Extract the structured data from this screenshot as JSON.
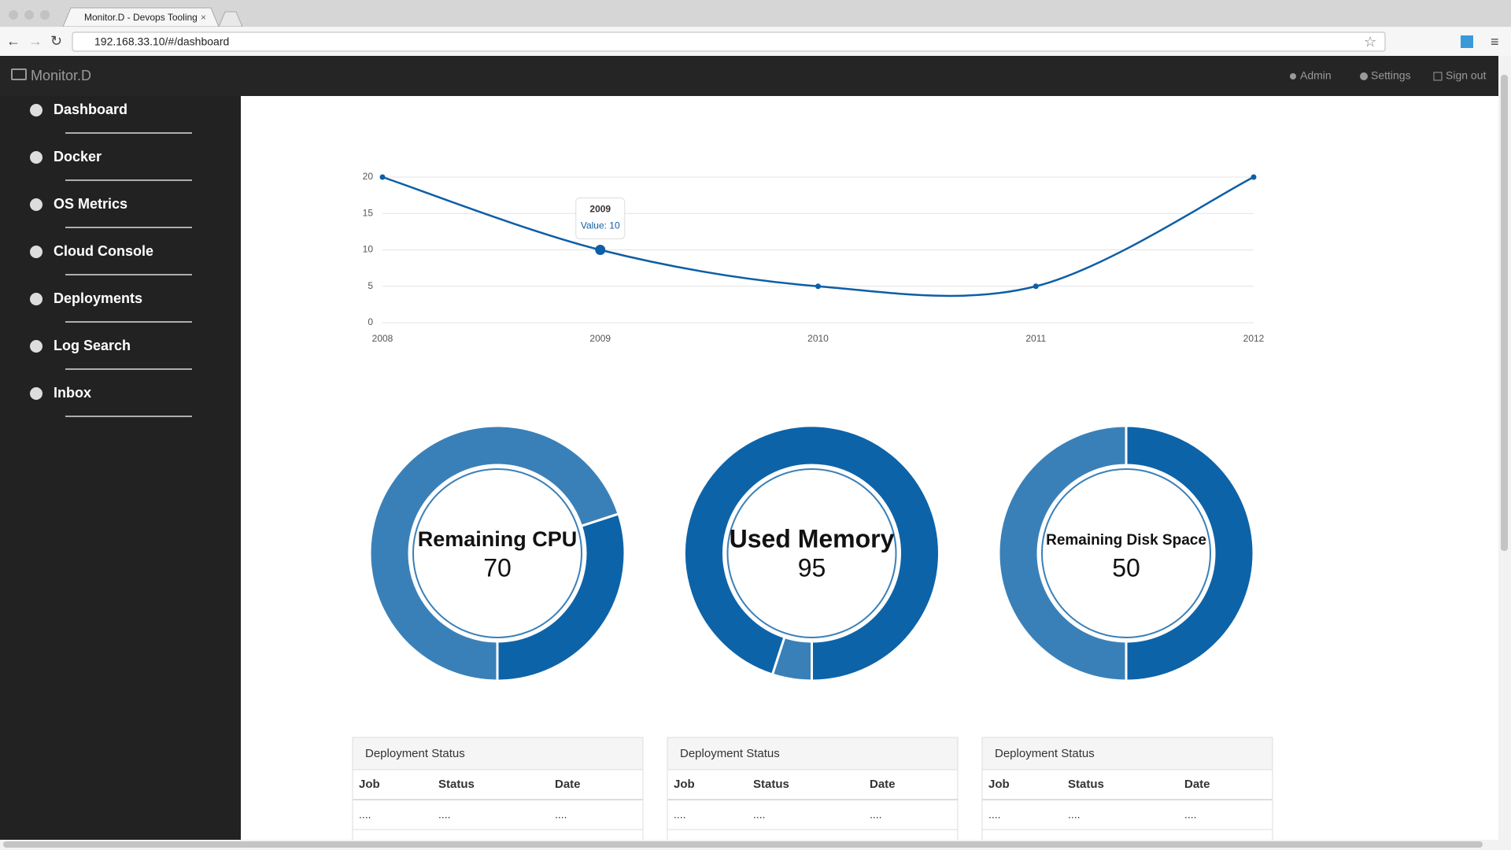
{
  "browser": {
    "tab_title": "Monitor.D - Devops Tooling",
    "url": "192.168.33.10/#/dashboard"
  },
  "navbar": {
    "brand": "Monitor.D",
    "links": [
      "Admin",
      "Settings",
      "Sign out"
    ]
  },
  "sidebar": {
    "items": [
      "Dashboard",
      "Docker",
      "OS Metrics",
      "Cloud Console",
      "Deployments",
      "Log Search",
      "Inbox"
    ]
  },
  "chart_data": [
    {
      "type": "line",
      "categories": [
        "2008",
        "2009",
        "2010",
        "2011",
        "2012"
      ],
      "values": [
        20,
        10,
        5,
        5,
        20
      ],
      "color": "#0d5ea6",
      "ylim": [
        0,
        20
      ],
      "yticks": [
        0,
        5,
        10,
        15,
        20
      ],
      "grid": true,
      "tooltip": {
        "title": "2009",
        "text": "Value: 10"
      }
    },
    {
      "type": "pie",
      "title": "Remaining CPU",
      "values": [
        70,
        30
      ],
      "colors": [
        "#3a80b8",
        "#0d63a8"
      ]
    },
    {
      "type": "pie",
      "title": "Used Memory",
      "values": [
        5,
        95
      ],
      "colors": [
        "#3a80b8",
        "#0d63a8"
      ]
    },
    {
      "type": "pie",
      "title": "Remaining Disk Space",
      "values": [
        50,
        50
      ],
      "colors": [
        "#3a80b8",
        "#0d63a8"
      ]
    }
  ],
  "panels": [
    {
      "title": "Deployment Status",
      "columns": [
        "Job",
        "Status",
        "Date"
      ],
      "rows": [
        [
          "....",
          "....",
          "...."
        ]
      ]
    },
    {
      "title": "Deployment Status",
      "columns": [
        "Job",
        "Status",
        "Date"
      ],
      "rows": [
        [
          "....",
          "....",
          "...."
        ]
      ]
    },
    {
      "title": "Deployment Status",
      "columns": [
        "Job",
        "Status",
        "Date"
      ],
      "rows": [
        [
          "....",
          "....",
          "...."
        ]
      ]
    }
  ]
}
